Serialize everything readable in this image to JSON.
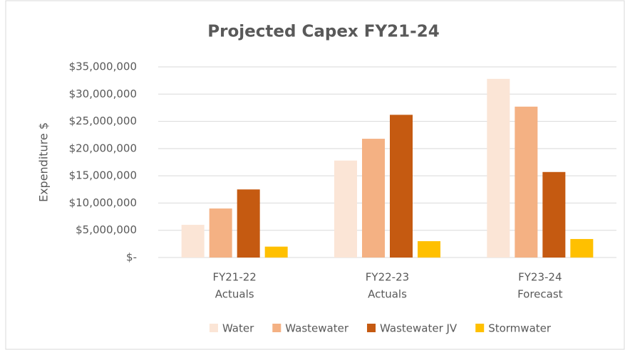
{
  "chart_data": {
    "type": "bar",
    "title": "Projected Capex FY21-24",
    "y_label": "Expenditure $",
    "categories": [
      [
        "FY21-22",
        "Actuals"
      ],
      [
        "FY22-23",
        "Actuals"
      ],
      [
        "FY23-24",
        "Forecast"
      ]
    ],
    "series": [
      {
        "name": "Water",
        "color": "#fbe5d6",
        "values": [
          6000000,
          17800000,
          32800000
        ]
      },
      {
        "name": "Wastewater",
        "color": "#f4b183",
        "values": [
          9000000,
          21800000,
          27700000
        ]
      },
      {
        "name": "Wastewater JV",
        "color": "#c55a11",
        "values": [
          12500000,
          26200000,
          15700000
        ]
      },
      {
        "name": "Stormwater",
        "color": "#ffc000",
        "values": [
          2000000,
          3000000,
          3400000
        ]
      }
    ],
    "ylim": [
      0,
      35000000
    ],
    "yticks": [
      {
        "value": 0,
        "label": "$-"
      },
      {
        "value": 5000000,
        "label": "$5,000,000"
      },
      {
        "value": 10000000,
        "label": "$10,000,000"
      },
      {
        "value": 15000000,
        "label": "$15,000,000"
      },
      {
        "value": 20000000,
        "label": "$20,000,000"
      },
      {
        "value": 25000000,
        "label": "$25,000,000"
      },
      {
        "value": 30000000,
        "label": "$30,000,000"
      },
      {
        "value": 35000000,
        "label": "$35,000,000"
      }
    ],
    "grid": true,
    "legend": "bottom"
  }
}
